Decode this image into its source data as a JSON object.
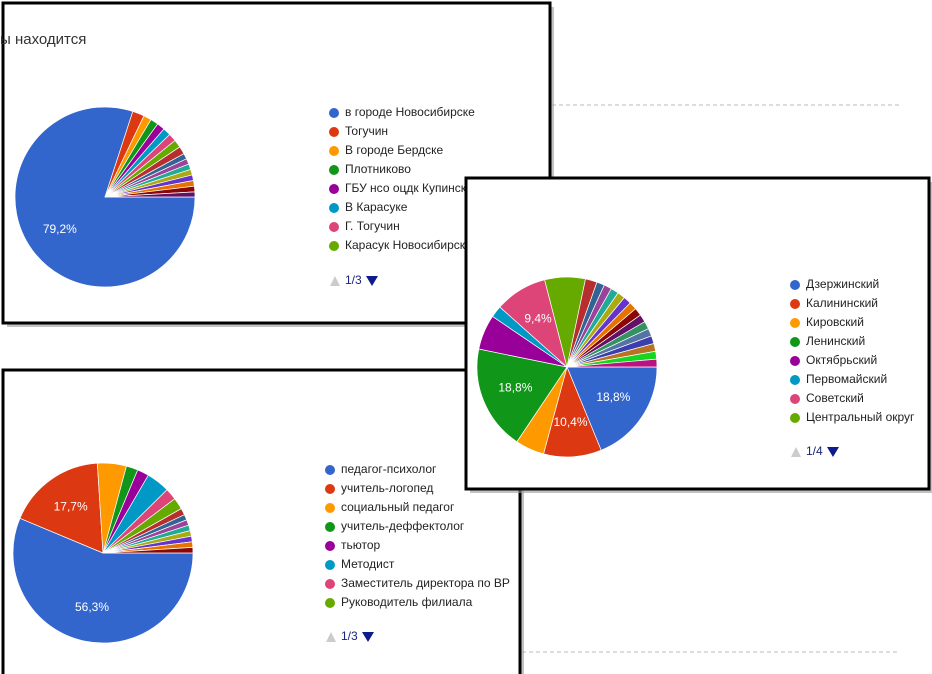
{
  "chart_data": [
    {
      "type": "pie",
      "title": "ы находится",
      "categories": [
        "в городе Новосибирске",
        "Тогучин",
        "В городе Бердске",
        "Плотниково",
        "ГБУ нсо оцдк Купинск",
        "В Карасуке",
        "Г. Тогучин",
        "Карасук Новосибирск",
        null,
        null,
        null,
        null,
        null,
        null,
        null,
        null,
        null
      ],
      "values": [
        79.2,
        2.1,
        1.4,
        1.4,
        1.4,
        1.4,
        1.4,
        1.4,
        1.4,
        1.0,
        1.0,
        1.0,
        1.0,
        1.0,
        1.0,
        1.0,
        0.9
      ],
      "value_labels": [
        "79,2%",
        null,
        null,
        null,
        null,
        null,
        null,
        null,
        null,
        null,
        null,
        null,
        null,
        null,
        null,
        null,
        null
      ],
      "colors": [
        "#3366cc",
        "#dc3912",
        "#ff9900",
        "#109618",
        "#990099",
        "#0099c6",
        "#dd4477",
        "#66aa00",
        "#b82e2e",
        "#316395",
        "#994499",
        "#22aa99",
        "#aaaa11",
        "#6633cc",
        "#e67300",
        "#8b0707",
        "#651067"
      ],
      "legend_page": "1/3"
    },
    {
      "type": "pie",
      "categories": [
        "Дзержинский",
        "Калининский",
        "Кировский",
        "Ленинский",
        "Октябрьский",
        "Первомайский",
        "Советский",
        "Центральный округ",
        null,
        null,
        null,
        null,
        null,
        null,
        null,
        null,
        null,
        null,
        null,
        null,
        null,
        null,
        null
      ],
      "values": [
        18.8,
        10.4,
        5.2,
        18.8,
        6.3,
        2.1,
        9.4,
        7.3,
        2.1,
        1.4,
        1.4,
        1.4,
        1.4,
        1.4,
        1.4,
        1.4,
        1.4,
        1.4,
        1.4,
        1.4,
        1.4,
        1.4,
        1.4
      ],
      "value_labels": [
        "18,8%",
        "10,4%",
        null,
        "18,8%",
        null,
        null,
        "9,4%",
        null,
        null,
        null,
        null,
        null,
        null,
        null,
        null,
        null,
        null,
        null,
        null,
        null,
        null,
        null,
        null
      ],
      "colors": [
        "#3366cc",
        "#dc3912",
        "#ff9900",
        "#109618",
        "#990099",
        "#0099c6",
        "#dd4477",
        "#66aa00",
        "#b82e2e",
        "#316395",
        "#994499",
        "#22aa99",
        "#aaaa11",
        "#6633cc",
        "#e67300",
        "#8b0707",
        "#651067",
        "#329262",
        "#5574a6",
        "#3b3eac",
        "#b77322",
        "#16d620",
        "#b91383"
      ],
      "legend_page": "1/4"
    },
    {
      "type": "pie",
      "categories": [
        "педагог-психолог",
        "учитель-логопед",
        "социальный педагог",
        "учитель-деффектолог",
        "тьютор",
        "Методист",
        "Заместитель директора по ВР",
        "Руководитель филиала",
        null,
        null,
        null,
        null,
        null,
        null,
        null,
        null
      ],
      "values": [
        56.3,
        17.7,
        5.2,
        2.1,
        2.1,
        4.2,
        2.1,
        2.1,
        1.2,
        1.0,
        1.0,
        1.0,
        1.0,
        1.0,
        1.0,
        1.0
      ],
      "value_labels": [
        "56,3%",
        "17,7%",
        null,
        null,
        null,
        null,
        null,
        null,
        null,
        null,
        null,
        null,
        null,
        null,
        null,
        null
      ],
      "colors": [
        "#3366cc",
        "#dc3912",
        "#ff9900",
        "#109618",
        "#990099",
        "#0099c6",
        "#dd4477",
        "#66aa00",
        "#b82e2e",
        "#316395",
        "#994499",
        "#22aa99",
        "#aaaa11",
        "#6633cc",
        "#e67300",
        "#8b0707"
      ],
      "legend_page": "1/3"
    }
  ]
}
